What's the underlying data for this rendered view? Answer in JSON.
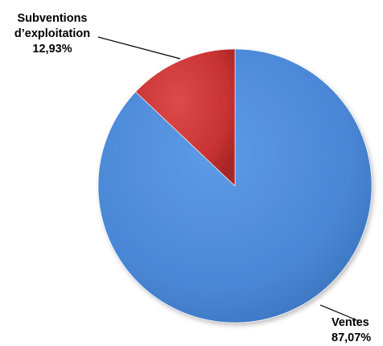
{
  "chart_data": {
    "type": "pie",
    "title": "",
    "slices": [
      {
        "label": "Ventes",
        "value": 87.07,
        "value_label": "87,07%",
        "color": "#4a8ad8"
      },
      {
        "label": "Subventions d’exploitation",
        "label_lines": [
          "Subventions",
          "d’exploitation"
        ],
        "value": 12.93,
        "value_label": "12,93%",
        "color": "#cc3333"
      }
    ],
    "start": "12 o'clock",
    "direction": "clockwise",
    "legend": "none",
    "data_labels": "outside with leader lines"
  }
}
